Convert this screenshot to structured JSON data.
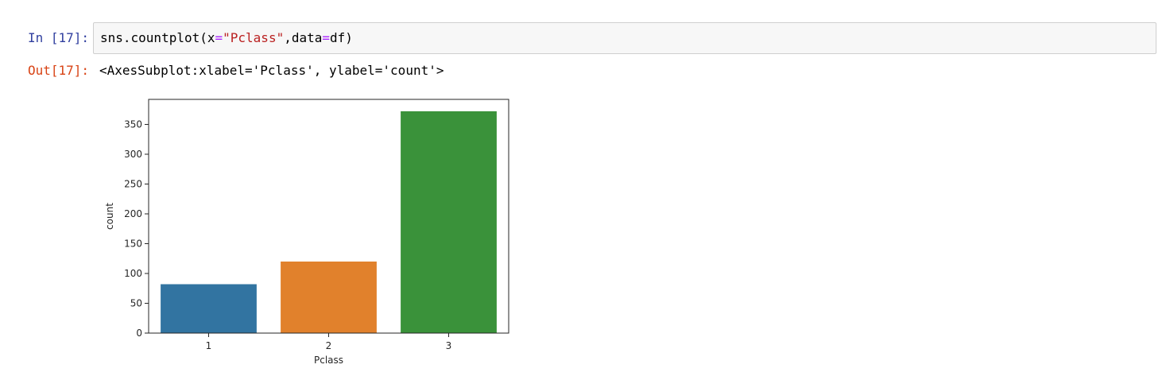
{
  "cell": {
    "in_prompt": "In [17]:",
    "code_tokens": [
      {
        "text": "sns.countplot(x",
        "color": "#000000"
      },
      {
        "text": "=",
        "color": "#aa22ff"
      },
      {
        "text": "\"Pclass\"",
        "color": "#ba2121"
      },
      {
        "text": ",data",
        "color": "#000000"
      },
      {
        "text": "=",
        "color": "#aa22ff"
      },
      {
        "text": "df)",
        "color": "#000000"
      }
    ],
    "out_prompt": "Out[17]:",
    "output_text": "<AxesSubplot:xlabel='Pclass', ylabel='count'>"
  },
  "chart_data": {
    "type": "bar",
    "categories": [
      "1",
      "2",
      "3"
    ],
    "values": [
      82,
      120,
      372
    ],
    "colors": [
      "#3274a1",
      "#e1812c",
      "#3a923a"
    ],
    "xlabel": "Pclass",
    "ylabel": "count",
    "ylim": [
      0,
      392
    ],
    "yticks": [
      0,
      50,
      100,
      150,
      200,
      250,
      300,
      350
    ],
    "grid": false
  }
}
